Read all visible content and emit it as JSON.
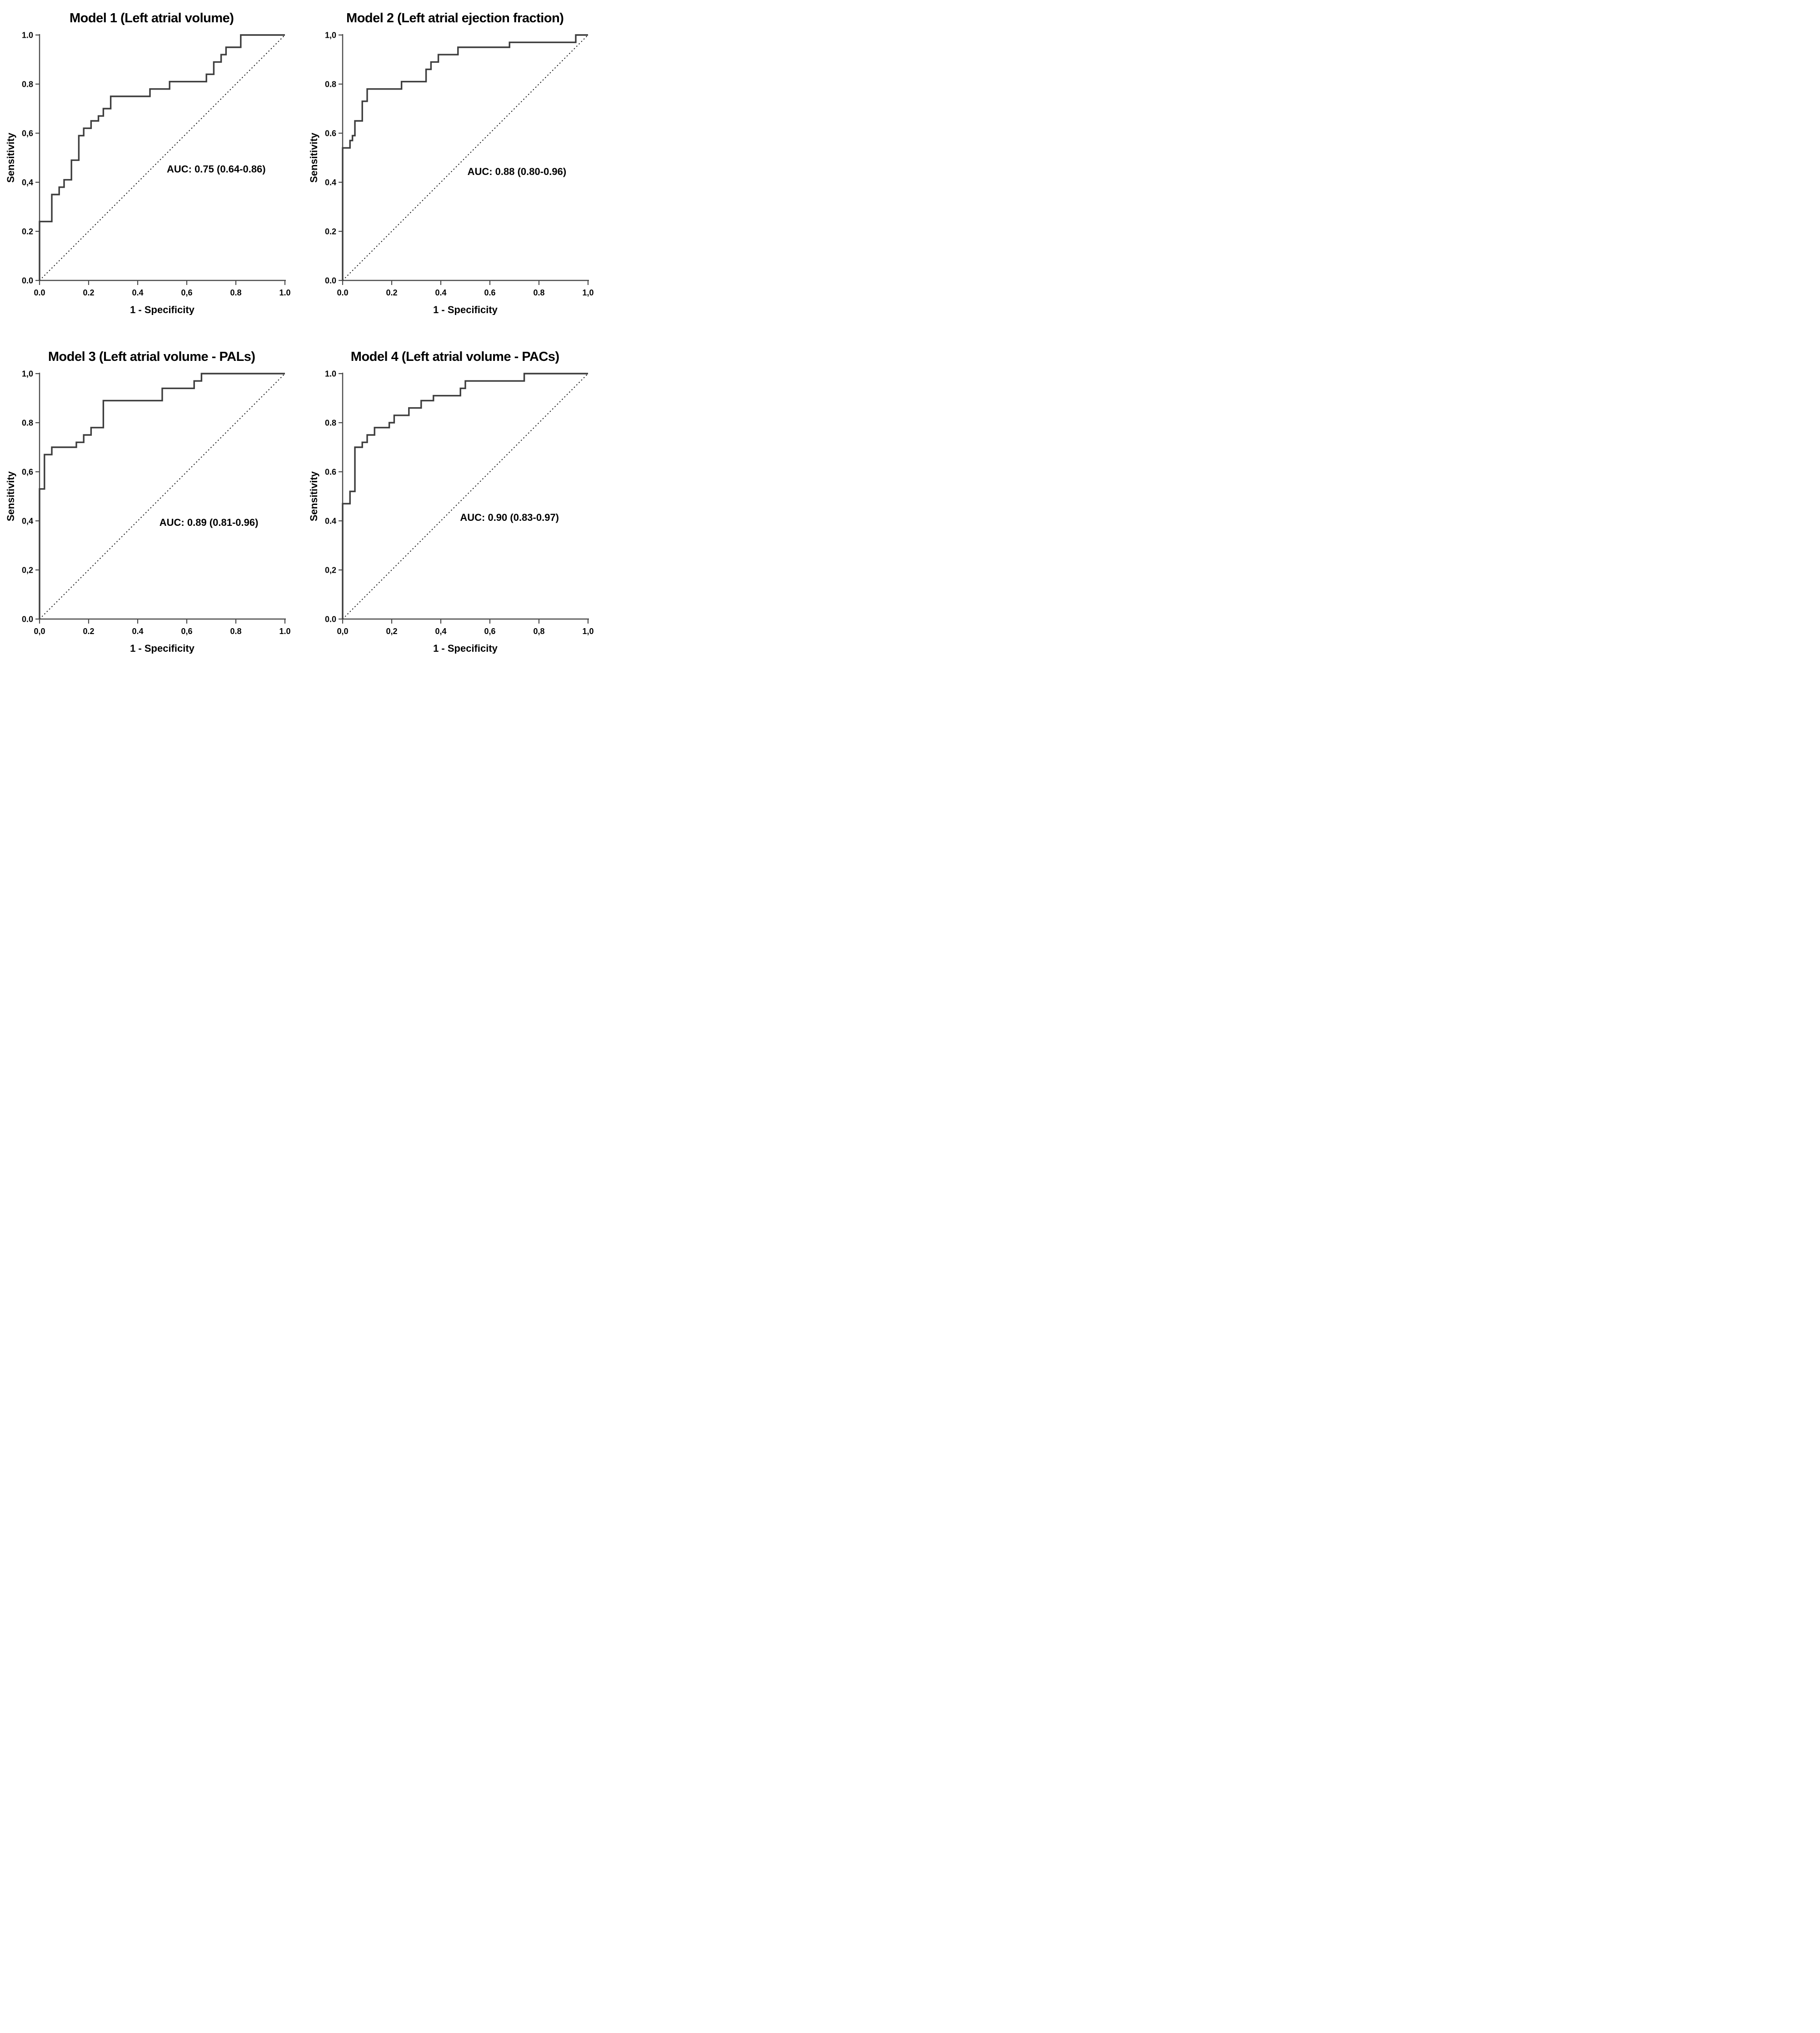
{
  "colors": {
    "background": "#ffffff",
    "text": "#000000",
    "axis": "#4a4a4a",
    "curve": "#3d3d3d",
    "diagonal": "#1a1a1a"
  },
  "chart_data": [
    {
      "type": "line",
      "title": "Model 1 (Left atrial volume)",
      "xlabel": "1 - Specificity",
      "ylabel": "Sensitivity",
      "xlim": [
        0,
        1
      ],
      "ylim": [
        0,
        1
      ],
      "grid": false,
      "legend": "none",
      "ticks": [
        0,
        0.2,
        0.4,
        0.6,
        0.8,
        1.0
      ],
      "x_tick_labels": [
        "0.0",
        "0.2",
        "0.4",
        "0,6",
        "0.8",
        "1.0"
      ],
      "y_tick_labels": [
        "0.0",
        "0.2",
        "0,4",
        "0,6",
        "0.8",
        "1.0"
      ],
      "series": [
        {
          "name": "ROC curve",
          "style": "solid-step",
          "points": [
            [
              0,
              0
            ],
            [
              0,
              0.24
            ],
            [
              0.05,
              0.24
            ],
            [
              0.05,
              0.35
            ],
            [
              0.08,
              0.35
            ],
            [
              0.08,
              0.38
            ],
            [
              0.1,
              0.38
            ],
            [
              0.1,
              0.41
            ],
            [
              0.13,
              0.41
            ],
            [
              0.13,
              0.49
            ],
            [
              0.16,
              0.49
            ],
            [
              0.16,
              0.59
            ],
            [
              0.18,
              0.59
            ],
            [
              0.18,
              0.62
            ],
            [
              0.21,
              0.62
            ],
            [
              0.21,
              0.65
            ],
            [
              0.24,
              0.65
            ],
            [
              0.24,
              0.67
            ],
            [
              0.26,
              0.67
            ],
            [
              0.26,
              0.7
            ],
            [
              0.29,
              0.7
            ],
            [
              0.29,
              0.75
            ],
            [
              0.45,
              0.75
            ],
            [
              0.45,
              0.78
            ],
            [
              0.53,
              0.78
            ],
            [
              0.53,
              0.81
            ],
            [
              0.68,
              0.81
            ],
            [
              0.68,
              0.84
            ],
            [
              0.71,
              0.84
            ],
            [
              0.71,
              0.89
            ],
            [
              0.74,
              0.89
            ],
            [
              0.74,
              0.92
            ],
            [
              0.76,
              0.92
            ],
            [
              0.76,
              0.95
            ],
            [
              0.82,
              0.95
            ],
            [
              0.82,
              1.0
            ],
            [
              1.0,
              1.0
            ]
          ]
        },
        {
          "name": "Reference diagonal",
          "style": "dashed",
          "points": [
            [
              0,
              0
            ],
            [
              1,
              1
            ]
          ]
        }
      ],
      "annotation": {
        "text": "AUC: 0.75 (0.64-0.86)",
        "x": 0.72,
        "y": 0.44
      }
    },
    {
      "type": "line",
      "title": "Model 2 (Left atrial ejection fraction)",
      "xlabel": "1 - Specificity",
      "ylabel": "Sensitivity",
      "xlim": [
        0,
        1
      ],
      "ylim": [
        0,
        1
      ],
      "grid": false,
      "legend": "none",
      "ticks": [
        0,
        0.2,
        0.4,
        0.6,
        0.8,
        1.0
      ],
      "x_tick_labels": [
        "0.0",
        "0.2",
        "0.4",
        "0.6",
        "0.8",
        "1,0"
      ],
      "y_tick_labels": [
        "0.0",
        "0.2",
        "0.4",
        "0.6",
        "0.8",
        "1,0"
      ],
      "series": [
        {
          "name": "ROC curve",
          "style": "solid-step",
          "points": [
            [
              0,
              0
            ],
            [
              0,
              0.54
            ],
            [
              0.03,
              0.54
            ],
            [
              0.03,
              0.57
            ],
            [
              0.04,
              0.57
            ],
            [
              0.04,
              0.59
            ],
            [
              0.05,
              0.59
            ],
            [
              0.05,
              0.65
            ],
            [
              0.08,
              0.65
            ],
            [
              0.08,
              0.73
            ],
            [
              0.1,
              0.73
            ],
            [
              0.1,
              0.78
            ],
            [
              0.24,
              0.78
            ],
            [
              0.24,
              0.81
            ],
            [
              0.34,
              0.81
            ],
            [
              0.34,
              0.86
            ],
            [
              0.36,
              0.86
            ],
            [
              0.36,
              0.89
            ],
            [
              0.39,
              0.89
            ],
            [
              0.39,
              0.92
            ],
            [
              0.47,
              0.92
            ],
            [
              0.47,
              0.95
            ],
            [
              0.68,
              0.95
            ],
            [
              0.68,
              0.97
            ],
            [
              0.95,
              0.97
            ],
            [
              0.95,
              1.0
            ],
            [
              1.0,
              1.0
            ]
          ]
        },
        {
          "name": "Reference diagonal",
          "style": "dashed",
          "points": [
            [
              0,
              0
            ],
            [
              1,
              1
            ]
          ]
        }
      ],
      "annotation": {
        "text": "AUC: 0.88 (0.80-0.96)",
        "x": 0.71,
        "y": 0.43
      }
    },
    {
      "type": "line",
      "title": "Model 3 (Left atrial volume - PALs)",
      "xlabel": "1 - Specificity",
      "ylabel": "Sensitivity",
      "xlim": [
        0,
        1
      ],
      "ylim": [
        0,
        1
      ],
      "grid": false,
      "legend": "none",
      "ticks": [
        0,
        0.2,
        0.4,
        0.6,
        0.8,
        1.0
      ],
      "x_tick_labels": [
        "0,0",
        "0.2",
        "0.4",
        "0,6",
        "0.8",
        "1.0"
      ],
      "y_tick_labels": [
        "0.0",
        "0,2",
        "0,4",
        "0,6",
        "0.8",
        "1,0"
      ],
      "series": [
        {
          "name": "ROC curve",
          "style": "solid-step",
          "points": [
            [
              0,
              0
            ],
            [
              0,
              0.53
            ],
            [
              0.02,
              0.53
            ],
            [
              0.02,
              0.67
            ],
            [
              0.05,
              0.67
            ],
            [
              0.05,
              0.7
            ],
            [
              0.15,
              0.7
            ],
            [
              0.15,
              0.72
            ],
            [
              0.18,
              0.72
            ],
            [
              0.18,
              0.75
            ],
            [
              0.21,
              0.75
            ],
            [
              0.21,
              0.78
            ],
            [
              0.26,
              0.78
            ],
            [
              0.26,
              0.89
            ],
            [
              0.5,
              0.89
            ],
            [
              0.5,
              0.94
            ],
            [
              0.63,
              0.94
            ],
            [
              0.63,
              0.97
            ],
            [
              0.66,
              0.97
            ],
            [
              0.66,
              1.0
            ],
            [
              1.0,
              1.0
            ]
          ]
        },
        {
          "name": "Reference diagonal",
          "style": "dashed",
          "points": [
            [
              0,
              0
            ],
            [
              1,
              1
            ]
          ]
        }
      ],
      "annotation": {
        "text": "AUC: 0.89 (0.81-0.96)",
        "x": 0.69,
        "y": 0.38
      }
    },
    {
      "type": "line",
      "title": "Model 4 (Left atrial volume - PACs)",
      "xlabel": "1 - Specificity",
      "ylabel": "Sensitivity",
      "xlim": [
        0,
        1
      ],
      "ylim": [
        0,
        1
      ],
      "grid": false,
      "legend": "none",
      "ticks": [
        0,
        0.2,
        0.4,
        0.6,
        0.8,
        1.0
      ],
      "x_tick_labels": [
        "0,0",
        "0,2",
        "0,4",
        "0,6",
        "0,8",
        "1,0"
      ],
      "y_tick_labels": [
        "0.0",
        "0,2",
        "0.4",
        "0.6",
        "0.8",
        "1.0"
      ],
      "series": [
        {
          "name": "ROC curve",
          "style": "solid-step",
          "points": [
            [
              0,
              0
            ],
            [
              0,
              0.47
            ],
            [
              0.03,
              0.47
            ],
            [
              0.03,
              0.52
            ],
            [
              0.05,
              0.52
            ],
            [
              0.05,
              0.7
            ],
            [
              0.08,
              0.7
            ],
            [
              0.08,
              0.72
            ],
            [
              0.1,
              0.72
            ],
            [
              0.1,
              0.75
            ],
            [
              0.13,
              0.75
            ],
            [
              0.13,
              0.78
            ],
            [
              0.19,
              0.78
            ],
            [
              0.19,
              0.8
            ],
            [
              0.21,
              0.8
            ],
            [
              0.21,
              0.83
            ],
            [
              0.27,
              0.83
            ],
            [
              0.27,
              0.86
            ],
            [
              0.32,
              0.86
            ],
            [
              0.32,
              0.89
            ],
            [
              0.37,
              0.89
            ],
            [
              0.37,
              0.91
            ],
            [
              0.48,
              0.91
            ],
            [
              0.48,
              0.94
            ],
            [
              0.5,
              0.94
            ],
            [
              0.5,
              0.97
            ],
            [
              0.74,
              0.97
            ],
            [
              0.74,
              1.0
            ],
            [
              1.0,
              1.0
            ]
          ]
        },
        {
          "name": "Reference diagonal",
          "style": "dashed",
          "points": [
            [
              0,
              0
            ],
            [
              1,
              1
            ]
          ]
        }
      ],
      "annotation": {
        "text": "AUC: 0.90 (0.83-0.97)",
        "x": 0.68,
        "y": 0.4
      }
    }
  ]
}
